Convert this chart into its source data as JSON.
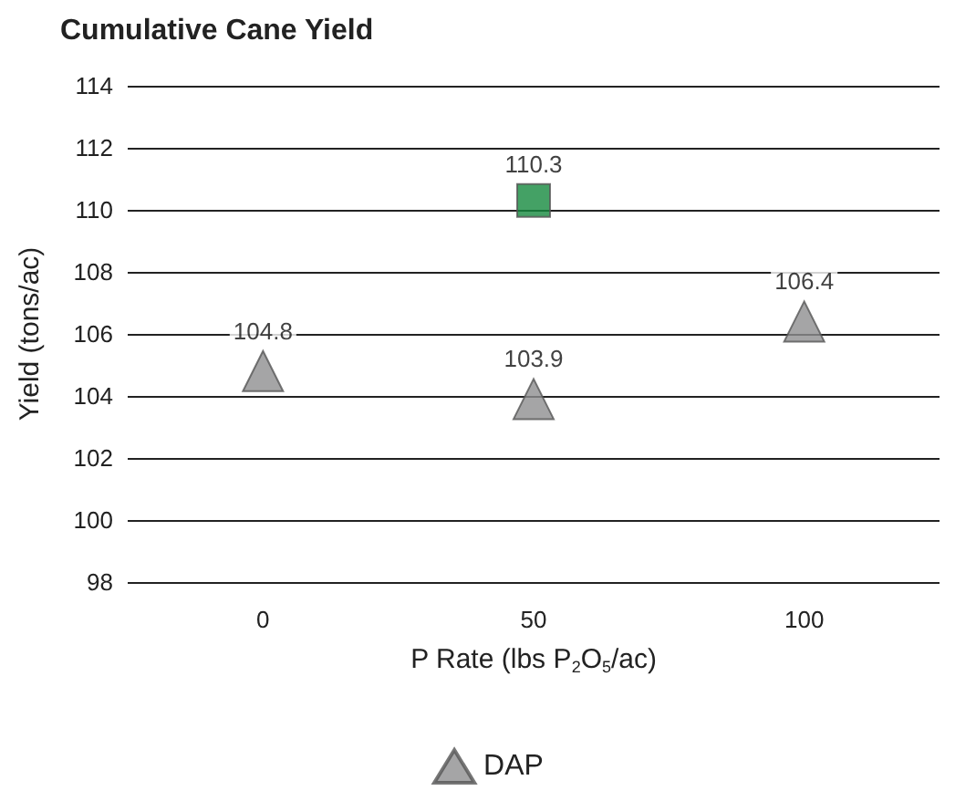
{
  "chart_data": {
    "type": "scatter",
    "title": "Cumulative Cane Yield",
    "xlabel": "P Rate (lbs P$_{2}$O$_{5}$/ac)",
    "ylabel": "Yield (tons/ac)",
    "series": [
      {
        "color": "#15893f",
        "marker": "square",
        "x": [
          50
        ],
        "values": [
          110.3
        ]
      },
      {
        "name": "DAP",
        "color": "#8e8e90",
        "marker": "triangle",
        "x": [
          0,
          50,
          100
        ],
        "values": [
          104.8,
          103.9,
          106.4
        ]
      }
    ],
    "xlim": [
      -25,
      125
    ],
    "xticks": [
      0,
      50,
      100
    ],
    "ylim": [
      98,
      114
    ],
    "yticks": [
      98,
      100,
      102,
      104,
      106,
      108,
      110,
      112,
      114
    ],
    "grid": "y",
    "legend": "bottom",
    "data_labels": true
  }
}
